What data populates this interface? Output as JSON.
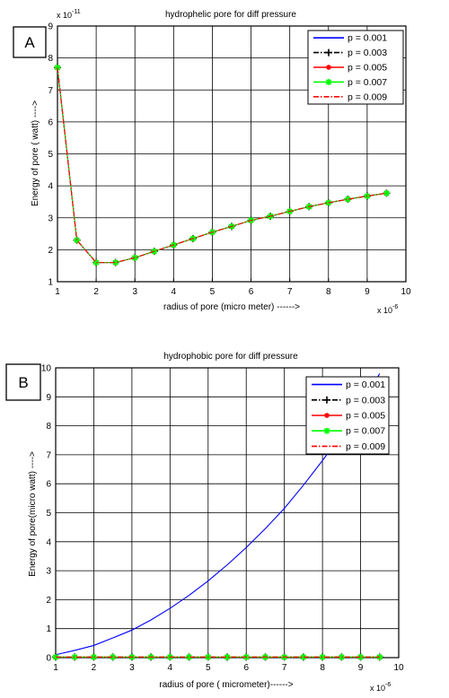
{
  "chart_data": [
    {
      "type": "line",
      "panel_label": "A",
      "title": "hydrophelic pore for diff pressure",
      "xlabel": "radius of pore (micro meter) ------>",
      "ylabel": "Energy of pore ( watt) ---->",
      "x_multiplier": "x 10",
      "x_exponent": "-6",
      "y_multiplier": "x 10",
      "y_exponent": "-11",
      "xlim": [
        1,
        10
      ],
      "ylim": [
        1,
        9
      ],
      "xticks": [
        "1",
        "2",
        "3",
        "4",
        "5",
        "6",
        "7",
        "8",
        "9",
        "10"
      ],
      "yticks": [
        "1",
        "2",
        "3",
        "4",
        "5",
        "6",
        "7",
        "8",
        "9"
      ],
      "grid": true,
      "legend_position": "top-right",
      "x": [
        1,
        1.5,
        2,
        2.5,
        3,
        3.5,
        4,
        4.5,
        5,
        5.5,
        6,
        6.5,
        7,
        7.5,
        8,
        8.5,
        9,
        9.5
      ],
      "series": [
        {
          "name": "p = 0.001",
          "color": "#0000ff",
          "marker": "none",
          "style": "solid",
          "values": [
            7.7,
            2.3,
            1.6,
            1.6,
            1.75,
            1.95,
            2.15,
            2.35,
            2.55,
            2.73,
            2.92,
            3.05,
            3.2,
            3.35,
            3.47,
            3.58,
            3.68,
            3.77
          ]
        },
        {
          "name": "p = 0.003",
          "color": "#000000",
          "marker": "plus",
          "style": "dashdot",
          "values": [
            7.7,
            2.3,
            1.6,
            1.6,
            1.75,
            1.95,
            2.15,
            2.35,
            2.55,
            2.73,
            2.92,
            3.05,
            3.2,
            3.35,
            3.47,
            3.58,
            3.68,
            3.77
          ]
        },
        {
          "name": "p = 0.005",
          "color": "#ff0000",
          "marker": "dot",
          "style": "solid",
          "values": [
            7.7,
            2.3,
            1.6,
            1.6,
            1.75,
            1.95,
            2.15,
            2.35,
            2.55,
            2.73,
            2.92,
            3.05,
            3.2,
            3.35,
            3.47,
            3.58,
            3.68,
            3.77
          ]
        },
        {
          "name": "p = 0.007",
          "color": "#00ff00",
          "marker": "star",
          "style": "solid",
          "values": [
            7.7,
            2.3,
            1.6,
            1.6,
            1.75,
            1.95,
            2.15,
            2.35,
            2.55,
            2.73,
            2.92,
            3.05,
            3.2,
            3.35,
            3.47,
            3.58,
            3.68,
            3.77
          ]
        },
        {
          "name": "p = 0.009",
          "color": "#ff0000",
          "marker": "none",
          "style": "dashdot",
          "values": [
            7.7,
            2.3,
            1.6,
            1.6,
            1.75,
            1.95,
            2.15,
            2.35,
            2.55,
            2.73,
            2.92,
            3.05,
            3.2,
            3.35,
            3.47,
            3.58,
            3.68,
            3.77
          ]
        }
      ]
    },
    {
      "type": "line",
      "panel_label": "B",
      "title": "hydrophobic pore for diff pressure",
      "xlabel": "radius of pore ( micrometer)------>",
      "ylabel": "Energy of pore(micro watt) ---->",
      "x_multiplier": "x 10",
      "x_exponent": "-6",
      "xlim": [
        1,
        10
      ],
      "ylim": [
        0,
        10
      ],
      "xticks": [
        "1",
        "2",
        "3",
        "4",
        "5",
        "6",
        "7",
        "8",
        "9",
        "10"
      ],
      "yticks": [
        "0",
        "1",
        "2",
        "3",
        "4",
        "5",
        "6",
        "7",
        "8",
        "9",
        "10"
      ],
      "grid": true,
      "legend_position": "top-right",
      "x": [
        1,
        1.5,
        2,
        2.5,
        3,
        3.5,
        4,
        4.5,
        5,
        5.5,
        6,
        6.5,
        7,
        7.5,
        8,
        8.5,
        9,
        9.5
      ],
      "series": [
        {
          "name": "p = 0.001",
          "color": "#0000ff",
          "marker": "none",
          "style": "solid",
          "values": [
            0.1,
            0.25,
            0.42,
            0.68,
            0.95,
            1.3,
            1.7,
            2.15,
            2.65,
            3.2,
            3.8,
            4.45,
            5.15,
            5.95,
            6.8,
            7.7,
            8.7,
            9.8
          ]
        },
        {
          "name": "p = 0.003",
          "color": "#000000",
          "marker": "plus",
          "style": "dashdot",
          "values": [
            0.02,
            0.02,
            0.02,
            0.02,
            0.02,
            0.02,
            0.02,
            0.02,
            0.02,
            0.02,
            0.02,
            0.02,
            0.02,
            0.02,
            0.02,
            0.02,
            0.02,
            0.02
          ]
        },
        {
          "name": "p = 0.005",
          "color": "#ff0000",
          "marker": "dot",
          "style": "solid",
          "values": [
            0.02,
            0.02,
            0.02,
            0.02,
            0.02,
            0.02,
            0.02,
            0.02,
            0.02,
            0.02,
            0.02,
            0.02,
            0.02,
            0.02,
            0.02,
            0.02,
            0.02,
            0.02
          ]
        },
        {
          "name": "p = 0.007",
          "color": "#00ff00",
          "marker": "star",
          "style": "solid",
          "values": [
            0.02,
            0.02,
            0.02,
            0.02,
            0.02,
            0.02,
            0.02,
            0.02,
            0.02,
            0.02,
            0.02,
            0.02,
            0.02,
            0.02,
            0.02,
            0.02,
            0.02,
            0.02
          ]
        },
        {
          "name": "p = 0.009",
          "color": "#ff0000",
          "marker": "none",
          "style": "dashdot",
          "values": [
            0.02,
            0.02,
            0.02,
            0.02,
            0.02,
            0.02,
            0.02,
            0.02,
            0.02,
            0.02,
            0.02,
            0.02,
            0.02,
            0.02,
            0.02,
            0.02,
            0.02,
            0.02
          ]
        }
      ]
    }
  ]
}
